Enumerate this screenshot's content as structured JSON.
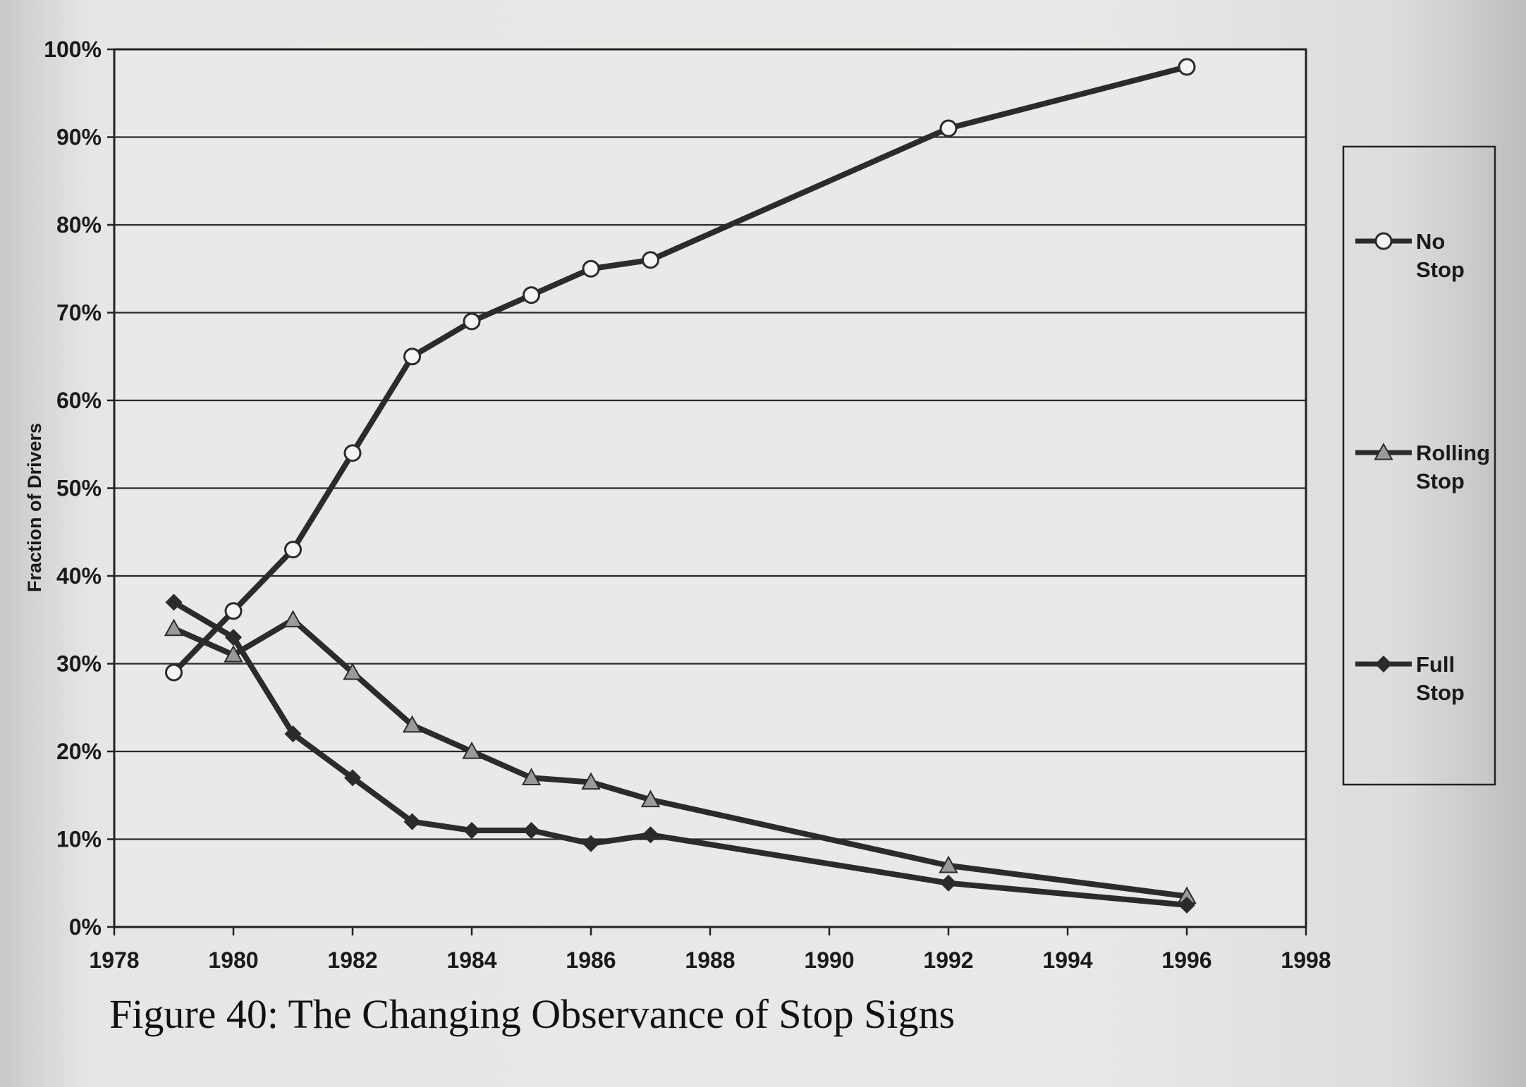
{
  "chart_data": {
    "type": "line",
    "caption": "Figure 40: The Changing Observance of Stop Signs",
    "ylabel": "Fraction of Drivers",
    "xlabel": "",
    "xlim": [
      1978,
      1998
    ],
    "ylim": [
      0,
      100
    ],
    "x_ticks": [
      "1978",
      "1980",
      "1982",
      "1984",
      "1986",
      "1988",
      "1990",
      "1992",
      "1994",
      "1996",
      "1998"
    ],
    "y_ticks": [
      "0%",
      "10%",
      "20%",
      "30%",
      "40%",
      "50%",
      "60%",
      "70%",
      "80%",
      "90%",
      "100%"
    ],
    "grid": "horizontal",
    "legend_position": "right",
    "series": [
      {
        "name": "No Stop",
        "legend_lines": [
          "No",
          "Stop"
        ],
        "marker": "circle",
        "color": "#2b2b2b",
        "x": [
          1979,
          1980,
          1981,
          1982,
          1983,
          1984,
          1985,
          1986,
          1987,
          1992,
          1996
        ],
        "values": [
          29,
          36,
          43,
          54,
          65,
          69,
          72,
          75,
          76,
          91,
          98
        ]
      },
      {
        "name": "Rolling Stop",
        "legend_lines": [
          "Rolling",
          "Stop"
        ],
        "marker": "triangle",
        "color": "#2b2b2b",
        "x": [
          1979,
          1980,
          1981,
          1982,
          1983,
          1984,
          1985,
          1986,
          1987,
          1992,
          1996
        ],
        "values": [
          34,
          31,
          35,
          29,
          23,
          20,
          17,
          16.5,
          14.5,
          7,
          3.5
        ]
      },
      {
        "name": "Full Stop",
        "legend_lines": [
          "Full",
          "Stop"
        ],
        "marker": "diamond",
        "color": "#2b2b2b",
        "x": [
          1979,
          1980,
          1981,
          1982,
          1983,
          1984,
          1985,
          1986,
          1987,
          1992,
          1996
        ],
        "values": [
          37,
          33,
          22,
          17,
          12,
          11,
          11,
          9.5,
          10.5,
          5,
          2.5
        ]
      }
    ]
  }
}
